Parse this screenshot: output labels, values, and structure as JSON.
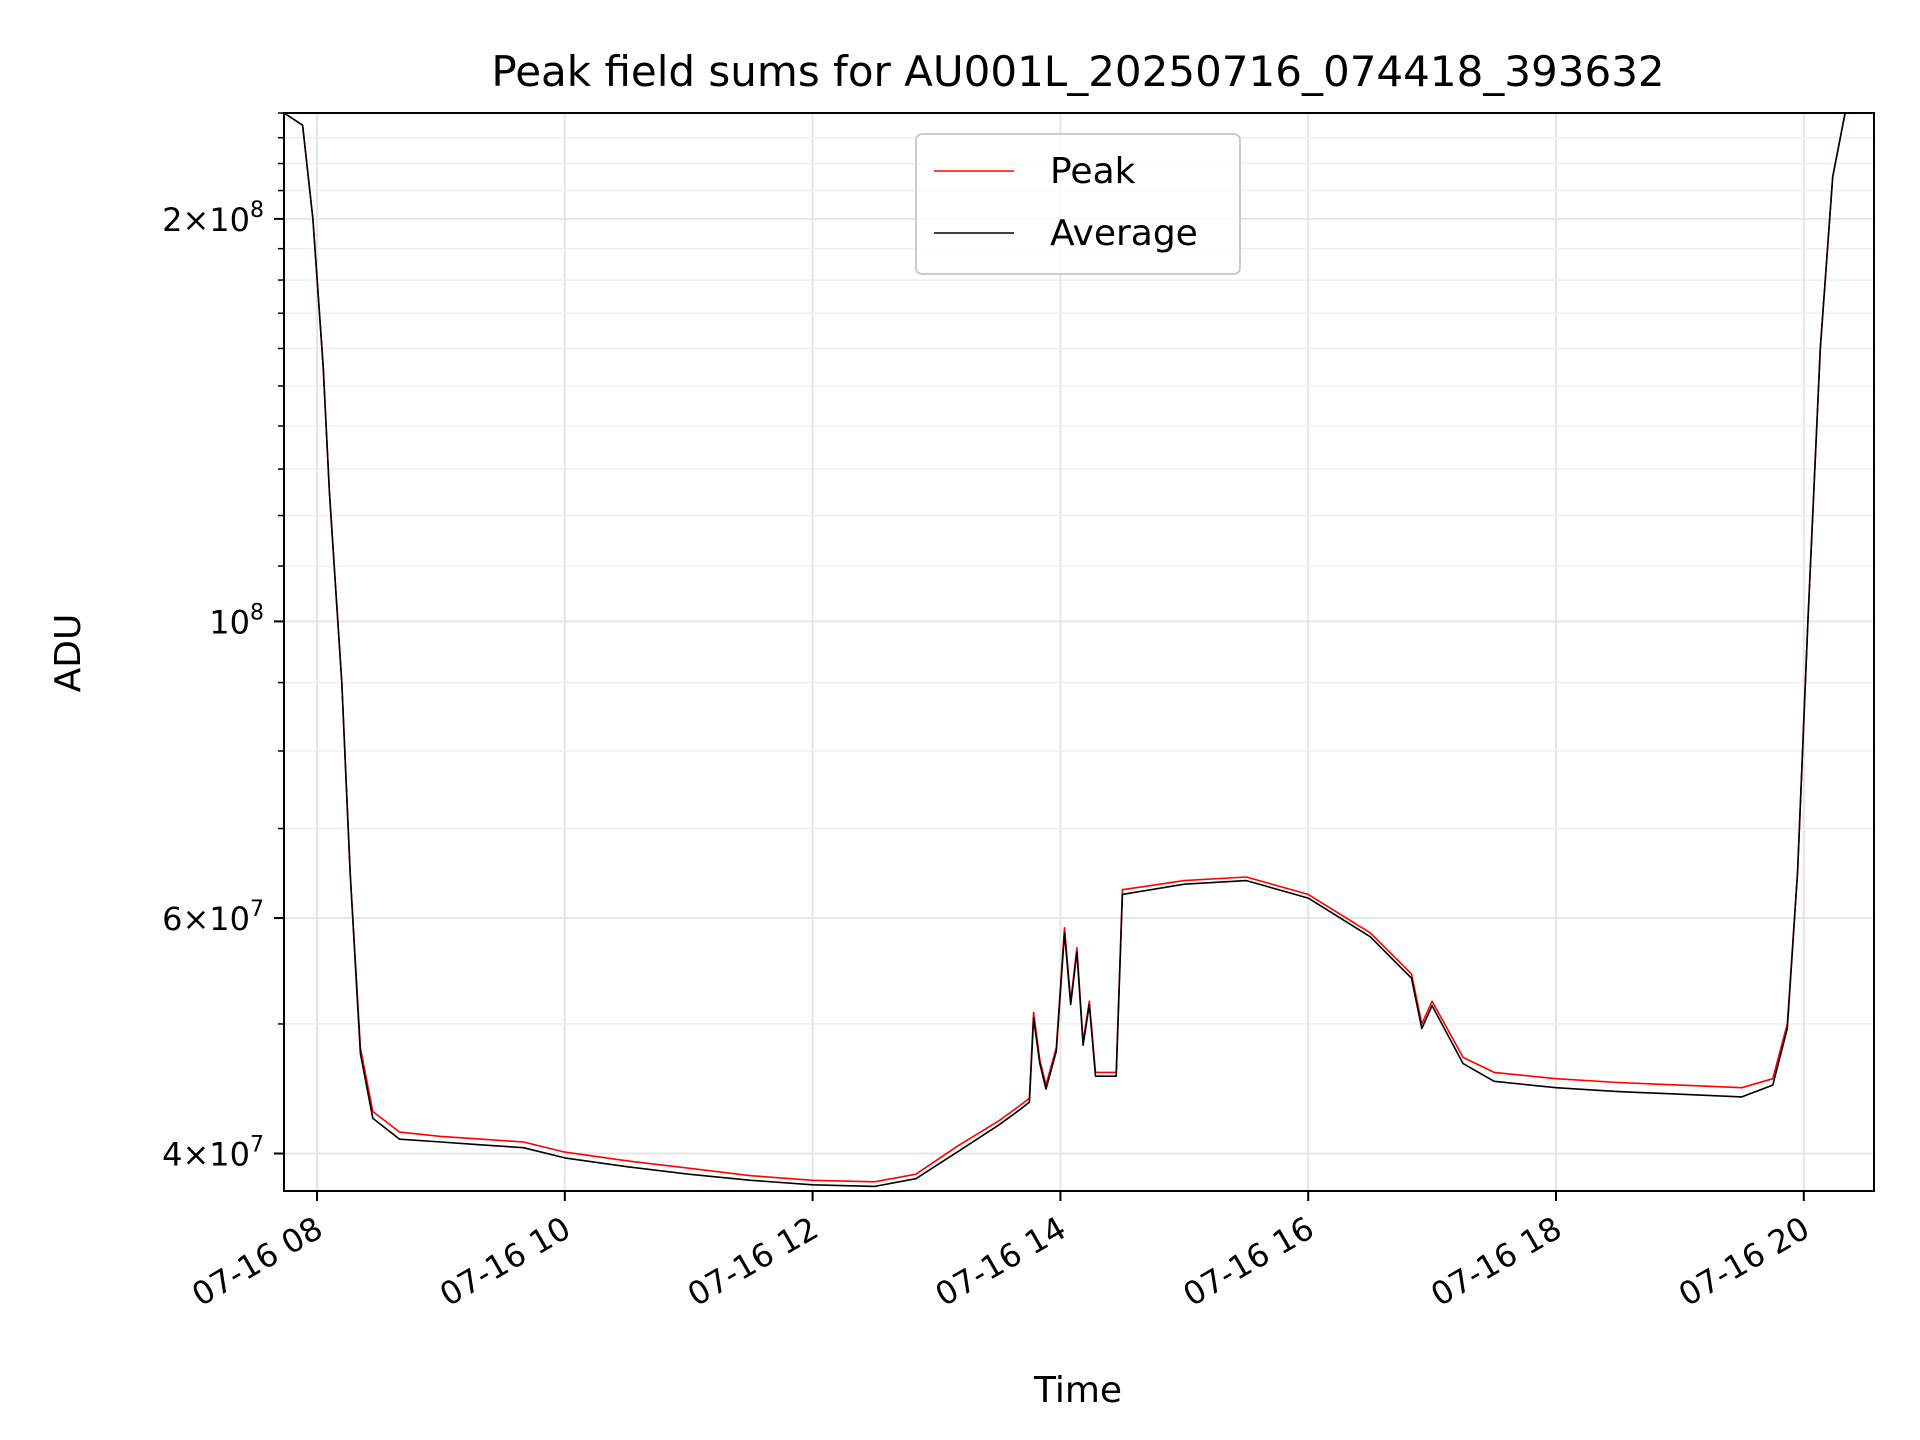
{
  "chart_data": {
    "type": "line",
    "title": "Peak field sums for AU001L_20250716_074418_393632",
    "xlabel": "Time",
    "ylabel": "ADU",
    "yscale": "log",
    "grid": true,
    "legend_placement": "upper-center",
    "x_ticks": [
      "07-16 08",
      "07-16 10",
      "07-16 12",
      "07-16 14",
      "07-16 16",
      "07-16 18",
      "07-16 20"
    ],
    "y_ticks": [
      {
        "value": 40000000,
        "mant": "4",
        "exp": "7"
      },
      {
        "value": 60000000,
        "mant": "6",
        "exp": "7"
      },
      {
        "value": 100000000,
        "mant": "",
        "exp": "8"
      },
      {
        "value": 200000000,
        "mant": "2",
        "exp": "8"
      }
    ],
    "xlim": [
      "2025-07-16 07:44",
      "2025-07-16 20:34"
    ],
    "ylim": [
      37500000,
      240000000
    ],
    "series": [
      {
        "name": "Peak",
        "color": "#ff0000",
        "points": [
          [
            "2025-07-16 07:44",
            240000000
          ],
          [
            "2025-07-16 07:53",
            235000000
          ],
          [
            "2025-07-16 07:58",
            200000000
          ],
          [
            "2025-07-16 08:03",
            155000000
          ],
          [
            "2025-07-16 08:06",
            125000000
          ],
          [
            "2025-07-16 08:12",
            90000000
          ],
          [
            "2025-07-16 08:16",
            65000000
          ],
          [
            "2025-07-16 08:21",
            48000000
          ],
          [
            "2025-07-16 08:27",
            43000000
          ],
          [
            "2025-07-16 08:40",
            41500000
          ],
          [
            "2025-07-16 09:00",
            41200000
          ],
          [
            "2025-07-16 09:20",
            41000000
          ],
          [
            "2025-07-16 09:40",
            40800000
          ],
          [
            "2025-07-16 10:00",
            40100000
          ],
          [
            "2025-07-16 10:30",
            39500000
          ],
          [
            "2025-07-16 11:00",
            39000000
          ],
          [
            "2025-07-16 11:30",
            38500000
          ],
          [
            "2025-07-16 12:00",
            38200000
          ],
          [
            "2025-07-16 12:30",
            38100000
          ],
          [
            "2025-07-16 12:50",
            38600000
          ],
          [
            "2025-07-16 13:10",
            40500000
          ],
          [
            "2025-07-16 13:30",
            42300000
          ],
          [
            "2025-07-16 13:40",
            43400000
          ],
          [
            "2025-07-16 13:45",
            44000000
          ],
          [
            "2025-07-16 13:47",
            51000000
          ],
          [
            "2025-07-16 13:50",
            47000000
          ],
          [
            "2025-07-16 13:53",
            45000000
          ],
          [
            "2025-07-16 13:58",
            48000000
          ],
          [
            "2025-07-16 14:02",
            59000000
          ],
          [
            "2025-07-16 14:05",
            52000000
          ],
          [
            "2025-07-16 14:08",
            57000000
          ],
          [
            "2025-07-16 14:11",
            48500000
          ],
          [
            "2025-07-16 14:14",
            52000000
          ],
          [
            "2025-07-16 14:17",
            46000000
          ],
          [
            "2025-07-16 14:27",
            46000000
          ],
          [
            "2025-07-16 14:30",
            63000000
          ],
          [
            "2025-07-16 15:00",
            64000000
          ],
          [
            "2025-07-16 15:30",
            64400000
          ],
          [
            "2025-07-16 16:00",
            62500000
          ],
          [
            "2025-07-16 16:30",
            58500000
          ],
          [
            "2025-07-16 16:50",
            54500000
          ],
          [
            "2025-07-16 16:55",
            50000000
          ],
          [
            "2025-07-16 17:00",
            52000000
          ],
          [
            "2025-07-16 17:15",
            47200000
          ],
          [
            "2025-07-16 17:30",
            46000000
          ],
          [
            "2025-07-16 18:00",
            45500000
          ],
          [
            "2025-07-16 18:30",
            45200000
          ],
          [
            "2025-07-16 19:00",
            45000000
          ],
          [
            "2025-07-16 19:30",
            44800000
          ],
          [
            "2025-07-16 19:45",
            45500000
          ],
          [
            "2025-07-16 19:52",
            50000000
          ],
          [
            "2025-07-16 19:57",
            65000000
          ],
          [
            "2025-07-16 20:02",
            100000000
          ],
          [
            "2025-07-16 20:08",
            160000000
          ],
          [
            "2025-07-16 20:14",
            215000000
          ],
          [
            "2025-07-16 20:20",
            240000000
          ],
          [
            "2025-07-16 20:34",
            240000000
          ]
        ]
      },
      {
        "name": "Average",
        "color": "#000000",
        "points": [
          [
            "2025-07-16 07:44",
            240000000
          ],
          [
            "2025-07-16 07:53",
            235000000
          ],
          [
            "2025-07-16 07:58",
            200000000
          ],
          [
            "2025-07-16 08:03",
            155000000
          ],
          [
            "2025-07-16 08:06",
            125000000
          ],
          [
            "2025-07-16 08:12",
            90000000
          ],
          [
            "2025-07-16 08:16",
            65000000
          ],
          [
            "2025-07-16 08:21",
            47500000
          ],
          [
            "2025-07-16 08:27",
            42500000
          ],
          [
            "2025-07-16 08:40",
            41000000
          ],
          [
            "2025-07-16 09:00",
            40800000
          ],
          [
            "2025-07-16 09:20",
            40600000
          ],
          [
            "2025-07-16 09:40",
            40400000
          ],
          [
            "2025-07-16 10:00",
            39700000
          ],
          [
            "2025-07-16 10:30",
            39100000
          ],
          [
            "2025-07-16 11:00",
            38600000
          ],
          [
            "2025-07-16 11:30",
            38200000
          ],
          [
            "2025-07-16 12:00",
            37900000
          ],
          [
            "2025-07-16 12:30",
            37800000
          ],
          [
            "2025-07-16 12:50",
            38300000
          ],
          [
            "2025-07-16 13:10",
            40100000
          ],
          [
            "2025-07-16 13:30",
            42000000
          ],
          [
            "2025-07-16 13:40",
            43100000
          ],
          [
            "2025-07-16 13:45",
            43700000
          ],
          [
            "2025-07-16 13:47",
            50500000
          ],
          [
            "2025-07-16 13:50",
            46700000
          ],
          [
            "2025-07-16 13:53",
            44700000
          ],
          [
            "2025-07-16 13:58",
            47700000
          ],
          [
            "2025-07-16 14:02",
            58500000
          ],
          [
            "2025-07-16 14:05",
            51700000
          ],
          [
            "2025-07-16 14:08",
            56600000
          ],
          [
            "2025-07-16 14:11",
            48200000
          ],
          [
            "2025-07-16 14:14",
            51700000
          ],
          [
            "2025-07-16 14:17",
            45700000
          ],
          [
            "2025-07-16 14:27",
            45700000
          ],
          [
            "2025-07-16 14:30",
            62500000
          ],
          [
            "2025-07-16 15:00",
            63600000
          ],
          [
            "2025-07-16 15:30",
            64000000
          ],
          [
            "2025-07-16 16:00",
            62100000
          ],
          [
            "2025-07-16 16:30",
            58100000
          ],
          [
            "2025-07-16 16:50",
            54100000
          ],
          [
            "2025-07-16 16:55",
            49600000
          ],
          [
            "2025-07-16 17:00",
            51600000
          ],
          [
            "2025-07-16 17:15",
            46700000
          ],
          [
            "2025-07-16 17:30",
            45300000
          ],
          [
            "2025-07-16 18:00",
            44800000
          ],
          [
            "2025-07-16 18:30",
            44500000
          ],
          [
            "2025-07-16 19:00",
            44300000
          ],
          [
            "2025-07-16 19:30",
            44100000
          ],
          [
            "2025-07-16 19:45",
            45000000
          ],
          [
            "2025-07-16 19:52",
            49600000
          ],
          [
            "2025-07-16 19:57",
            65000000
          ],
          [
            "2025-07-16 20:02",
            100000000
          ],
          [
            "2025-07-16 20:08",
            160000000
          ],
          [
            "2025-07-16 20:14",
            215000000
          ],
          [
            "2025-07-16 20:20",
            240000000
          ],
          [
            "2025-07-16 20:34",
            240000000
          ]
        ]
      }
    ]
  }
}
